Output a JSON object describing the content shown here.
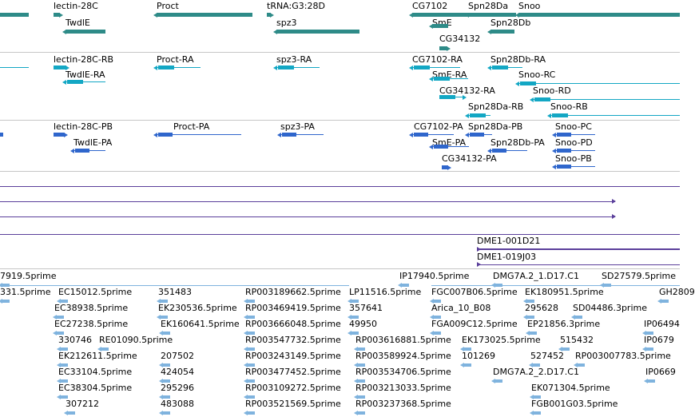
{
  "colors": {
    "gene": "#2e8b88",
    "gene_light": "#2f9aa0",
    "transcript_rb": "#13a7c4",
    "transcript_pb": "#2f66cc",
    "purple": "#5b3f9b",
    "light_blue": "#7fb3de",
    "divider": "#c6c6c6"
  },
  "rows": [
    {
      "id": "genes",
      "features": [
        {
          "label": "lectin-28C",
          "dir": "r"
        },
        {
          "label": "TwdlE",
          "dir": "l"
        },
        {
          "label": "Proct",
          "dir": "l"
        },
        {
          "label": "tRNA:G3:28D",
          "dir": "r"
        },
        {
          "label": "spz3",
          "dir": "l"
        },
        {
          "label": "CG7102",
          "dir": "l"
        },
        {
          "label": "SmE",
          "dir": "l"
        },
        {
          "label": "CG34132",
          "dir": "r"
        },
        {
          "label": "Spn28Da",
          "dir": "l"
        },
        {
          "label": "Spn28Db",
          "dir": "l"
        },
        {
          "label": "Snoo",
          "dir": "l"
        }
      ]
    },
    {
      "id": "transcripts-rb",
      "features": [
        {
          "label": "lectin-28C-RB",
          "dir": "r"
        },
        {
          "label": "TwdlE-RA",
          "dir": "l"
        },
        {
          "label": "Proct-RA",
          "dir": "l"
        },
        {
          "label": "spz3-RA",
          "dir": "l"
        },
        {
          "label": "CG7102-RA",
          "dir": "l"
        },
        {
          "label": "SmE-RA",
          "dir": "l"
        },
        {
          "label": "CG34132-RA",
          "dir": "r"
        },
        {
          "label": "Spn28Db-RA",
          "dir": "l"
        },
        {
          "label": "Snoo-RC",
          "dir": "l"
        },
        {
          "label": "Snoo-RD",
          "dir": "l"
        },
        {
          "label": "Spn28Da-RB",
          "dir": "l"
        },
        {
          "label": "Snoo-RB",
          "dir": "l"
        }
      ]
    },
    {
      "id": "transcripts-pb",
      "features": [
        {
          "label": "lectin-28C-PB",
          "dir": "r"
        },
        {
          "label": "TwdlE-PA",
          "dir": "l"
        },
        {
          "label": "Proct-PA",
          "dir": "l"
        },
        {
          "label": "spz3-PA",
          "dir": "l"
        },
        {
          "label": "CG7102-PA",
          "dir": "l"
        },
        {
          "label": "Spn28Da-PB",
          "dir": "l"
        },
        {
          "label": "SmE-PA",
          "dir": "l"
        },
        {
          "label": "Spn28Db-PA",
          "dir": "l"
        },
        {
          "label": "CG34132-PA",
          "dir": "r"
        },
        {
          "label": "Snoo-PC",
          "dir": "l"
        },
        {
          "label": "Snoo-PD",
          "dir": "l"
        },
        {
          "label": "Snoo-PB",
          "dir": "l"
        }
      ]
    },
    {
      "id": "clones",
      "features": [
        {
          "label": "DME1-001D21",
          "dir": "r"
        },
        {
          "label": "DME1-019J03",
          "dir": "r"
        }
      ]
    },
    {
      "id": "ests",
      "features": [
        {
          "label": "7919.5prime"
        },
        {
          "label": "IP17940.5prime"
        },
        {
          "label": "DMG7A.2_1.D17.C1"
        },
        {
          "label": "SD27579.5prime"
        },
        {
          "label": "331.5prime"
        },
        {
          "label": "EC15012.5prime"
        },
        {
          "label": "351483"
        },
        {
          "label": "RP003189662.5prime"
        },
        {
          "label": "LP11516.5prime"
        },
        {
          "label": "FGC007B06.5prime"
        },
        {
          "label": "EK180951.5prime"
        },
        {
          "label": "GH2809"
        },
        {
          "label": "EC38938.5prime"
        },
        {
          "label": "EK230536.5prime"
        },
        {
          "label": "RP003469419.5prime"
        },
        {
          "label": "357641"
        },
        {
          "label": "Arica_10_B08"
        },
        {
          "label": "295628"
        },
        {
          "label": "SD04486.3prime"
        },
        {
          "label": "EC27238.5prime"
        },
        {
          "label": "EK160641.5prime"
        },
        {
          "label": "RP003666048.5prime"
        },
        {
          "label": "49950"
        },
        {
          "label": "FGA009C12.5prime"
        },
        {
          "label": "EP21856.3prime"
        },
        {
          "label": "IP06494"
        },
        {
          "label": "330746"
        },
        {
          "label": "RE01090.5prime"
        },
        {
          "label": "RP003547732.5prime"
        },
        {
          "label": "RP003616881.5prime"
        },
        {
          "label": "EK173025.5prime"
        },
        {
          "label": "515432"
        },
        {
          "label": "IP0679"
        },
        {
          "label": "EK212611.5prime"
        },
        {
          "label": "207502"
        },
        {
          "label": "RP003243149.5prime"
        },
        {
          "label": "RP003589924.5prime"
        },
        {
          "label": "101269"
        },
        {
          "label": "527452"
        },
        {
          "label": "RP003007783.5prime"
        },
        {
          "label": "EC33104.5prime"
        },
        {
          "label": "424054"
        },
        {
          "label": "RP003477452.5prime"
        },
        {
          "label": "RP003534706.5prime"
        },
        {
          "label": "DMG7A.2_2.D17.C1"
        },
        {
          "label": "IP0669"
        },
        {
          "label": "EC38304.5prime"
        },
        {
          "label": "295296"
        },
        {
          "label": "RP003109272.5prime"
        },
        {
          "label": "RP003213033.5prime"
        },
        {
          "label": "EK071304.5prime"
        },
        {
          "label": "307212"
        },
        {
          "label": "483088"
        },
        {
          "label": "RP003521569.5prime"
        },
        {
          "label": "RP003237368.5prime"
        },
        {
          "label": "FGB001G03.5prime"
        }
      ]
    }
  ]
}
